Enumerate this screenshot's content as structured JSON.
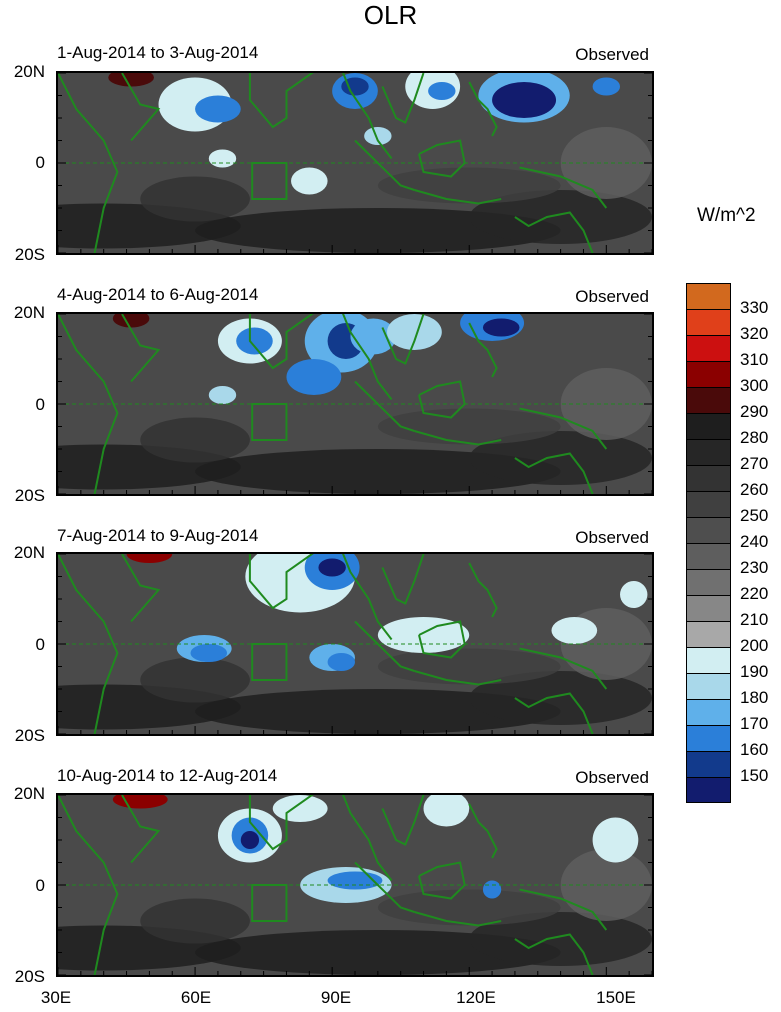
{
  "chart_data": {
    "type": "heatmap",
    "title": "OLR",
    "units": "W/m^2",
    "colorbar": {
      "levels": [
        "330",
        "320",
        "310",
        "300",
        "290",
        "280",
        "270",
        "260",
        "250",
        "240",
        "230",
        "220",
        "210",
        "200",
        "190",
        "180",
        "170",
        "160",
        "150"
      ],
      "colors": [
        "#d2691e",
        "#e0401a",
        "#cc1010",
        "#8b0000",
        "#4a0a0a",
        "#1e1e1e",
        "#262626",
        "#333333",
        "#404040",
        "#4e4e4e",
        "#5e5e5e",
        "#707070",
        "#878787",
        "#a8a8a8",
        "#d2eef2",
        "#a9d8ea",
        "#5fb0ea",
        "#2b7fd9",
        "#123a8c",
        "#121c6e"
      ]
    },
    "x_ticks": [
      "30E",
      "60E",
      "90E",
      "120E",
      "150E"
    ],
    "y_ticks": [
      "20N",
      "0",
      "20S"
    ],
    "panels": [
      {
        "title": "1-Aug-2014 to 3-Aug-2014",
        "label": "Observed"
      },
      {
        "title": "4-Aug-2014 to 6-Aug-2014",
        "label": "Observed"
      },
      {
        "title": "7-Aug-2014 to 9-Aug-2014",
        "label": "Observed"
      },
      {
        "title": "10-Aug-2014 to 12-Aug-2014",
        "label": "Observed"
      }
    ]
  }
}
